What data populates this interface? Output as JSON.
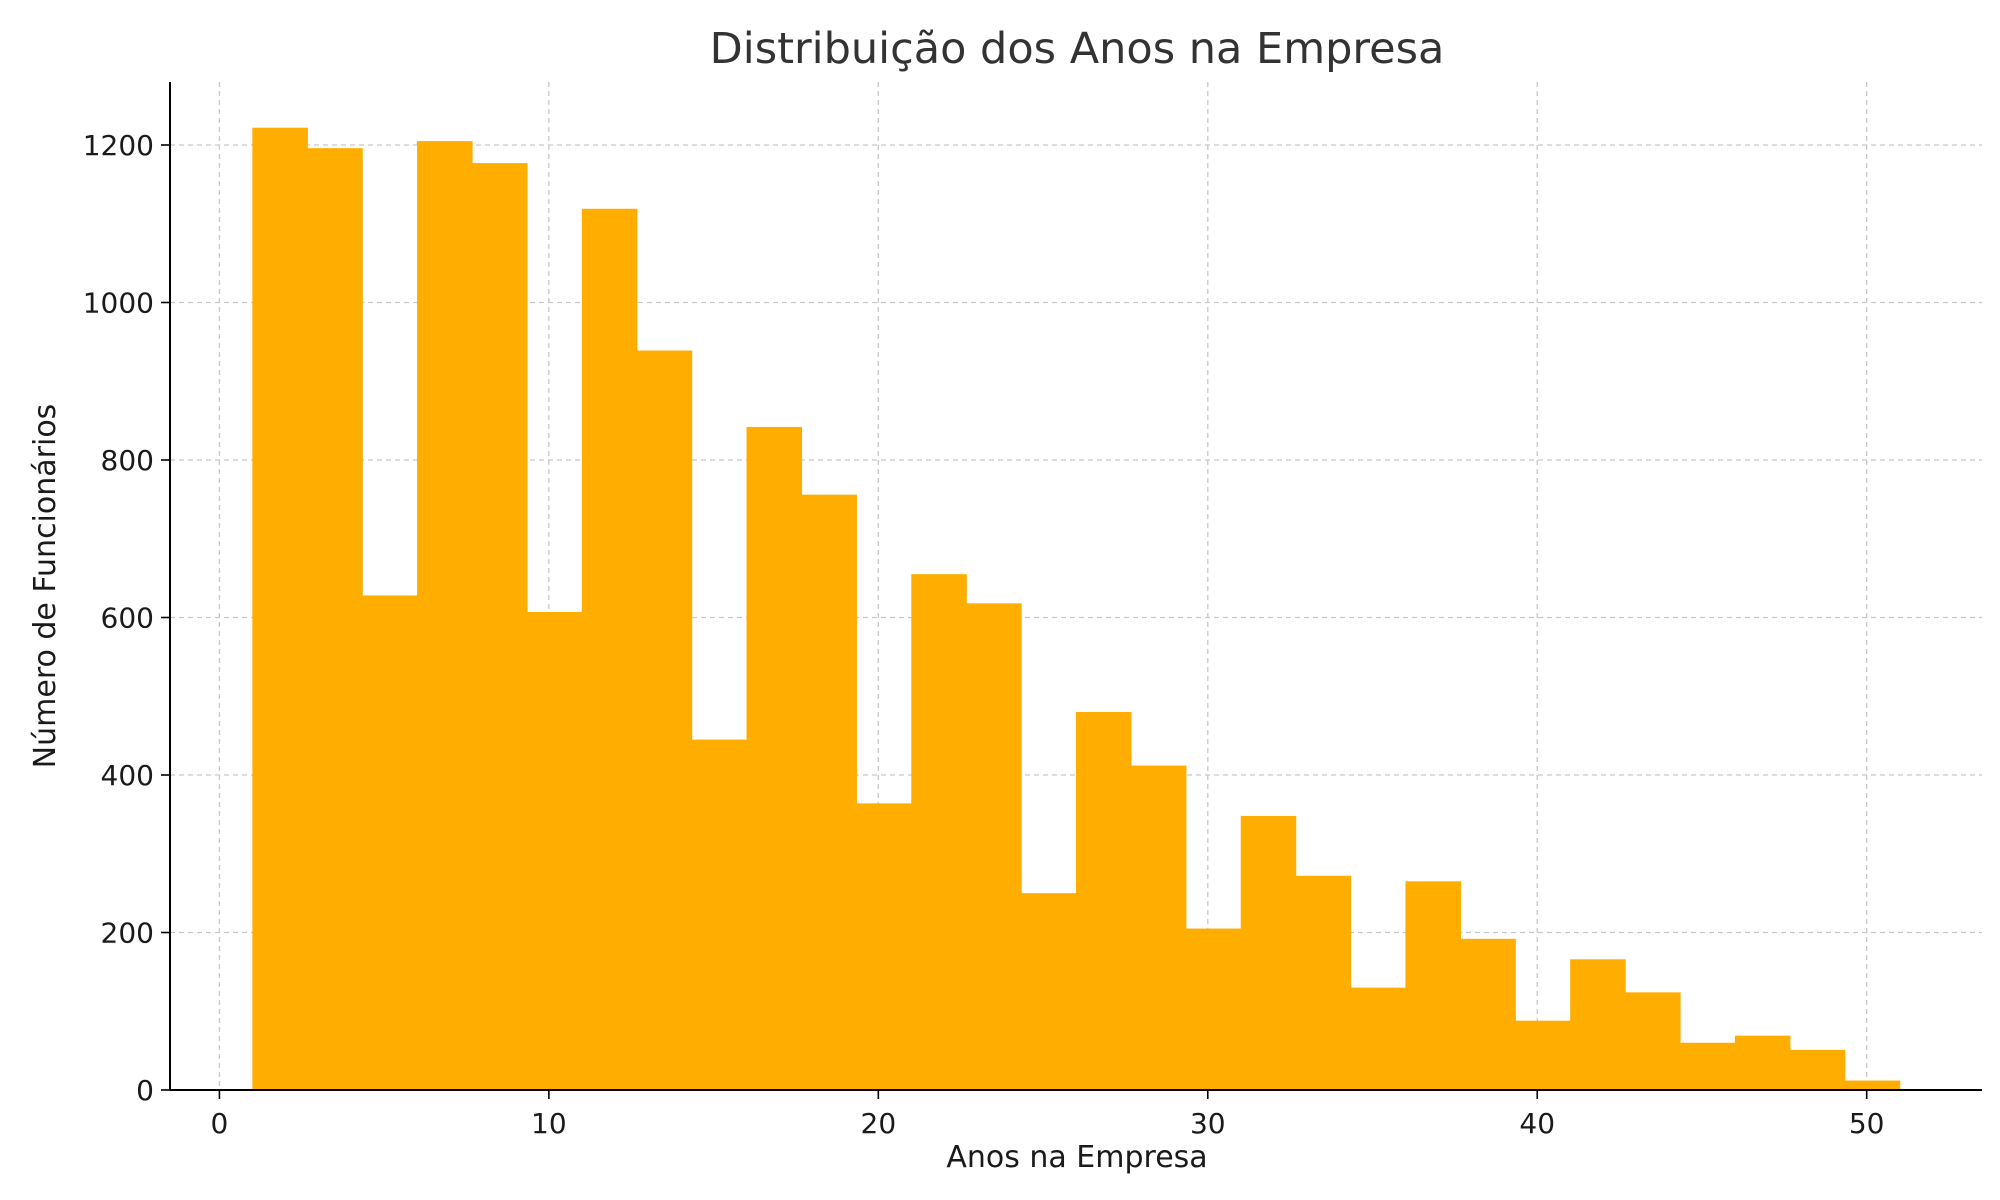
{
  "chart_data": {
    "type": "bar",
    "subtype": "histogram",
    "title": "Distribuição dos Anos na Empresa",
    "xlabel": "Anos na Empresa",
    "ylabel": "Número de Funcionários",
    "bin_edges": [
      1,
      2.667,
      4.333,
      6,
      7.667,
      9.333,
      11,
      12.667,
      14.333,
      16,
      17.667,
      19.333,
      21,
      22.667,
      24.333,
      26,
      27.667,
      29.333,
      31,
      32.667,
      34.333,
      36,
      37.667,
      39.333,
      41,
      42.667,
      44.333,
      46,
      47.667,
      49.333,
      51
    ],
    "values": [
      1222,
      1196,
      628,
      1205,
      1177,
      607,
      1119,
      939,
      445,
      842,
      756,
      364,
      655,
      618,
      250,
      480,
      412,
      205,
      348,
      272,
      130,
      265,
      192,
      88,
      166,
      124,
      60,
      69,
      51,
      12
    ],
    "xlim": [
      -1.5,
      53.5
    ],
    "ylim": [
      0,
      1280
    ],
    "xticks": [
      0,
      10,
      20,
      30,
      40,
      50
    ],
    "yticks": [
      0,
      200,
      400,
      600,
      800,
      1000,
      1200
    ],
    "grid": true,
    "bar_color": "#FFAE00"
  }
}
